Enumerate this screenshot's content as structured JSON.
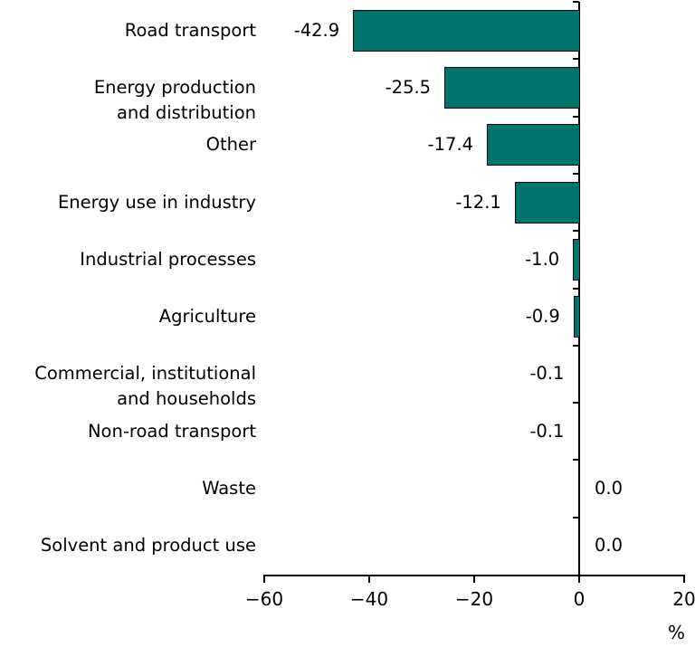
{
  "chart_data": {
    "type": "bar",
    "orientation": "horizontal",
    "title": "",
    "xlabel": "%",
    "ylabel": "",
    "categories": [
      [
        "Road transport"
      ],
      [
        "Energy production",
        "and distribution"
      ],
      [
        "Other"
      ],
      [
        "Energy use in industry"
      ],
      [
        "Industrial processes"
      ],
      [
        "Agriculture"
      ],
      [
        "Commercial, institutional",
        "and households"
      ],
      [
        "Non-road transport"
      ],
      [
        "Waste"
      ],
      [
        "Solvent and product use"
      ]
    ],
    "values": [
      -42.9,
      -25.5,
      -17.4,
      -12.1,
      -1.0,
      -0.9,
      -0.1,
      -0.1,
      0.0,
      0.0
    ],
    "value_labels": [
      "-42.9",
      "-25.5",
      "-17.4",
      "-12.1",
      "-1.0",
      "-0.9",
      "-0.1",
      "-0.1",
      "0.0",
      "0.0"
    ],
    "x_axis": {
      "min": -60,
      "max": 20,
      "unit": "%",
      "ticks": [
        {
          "value": -60,
          "label": "−60"
        },
        {
          "value": -40,
          "label": "−40"
        },
        {
          "value": -20,
          "label": "−20"
        },
        {
          "value": 0,
          "label": "0"
        },
        {
          "value": 20,
          "label": "20"
        }
      ]
    },
    "legend": null,
    "grid": false,
    "colors": {
      "bar_fill": "#00736C",
      "bar_border": "#000000",
      "axis": "#000000",
      "text": "#000000",
      "background": "#ffffff"
    }
  }
}
